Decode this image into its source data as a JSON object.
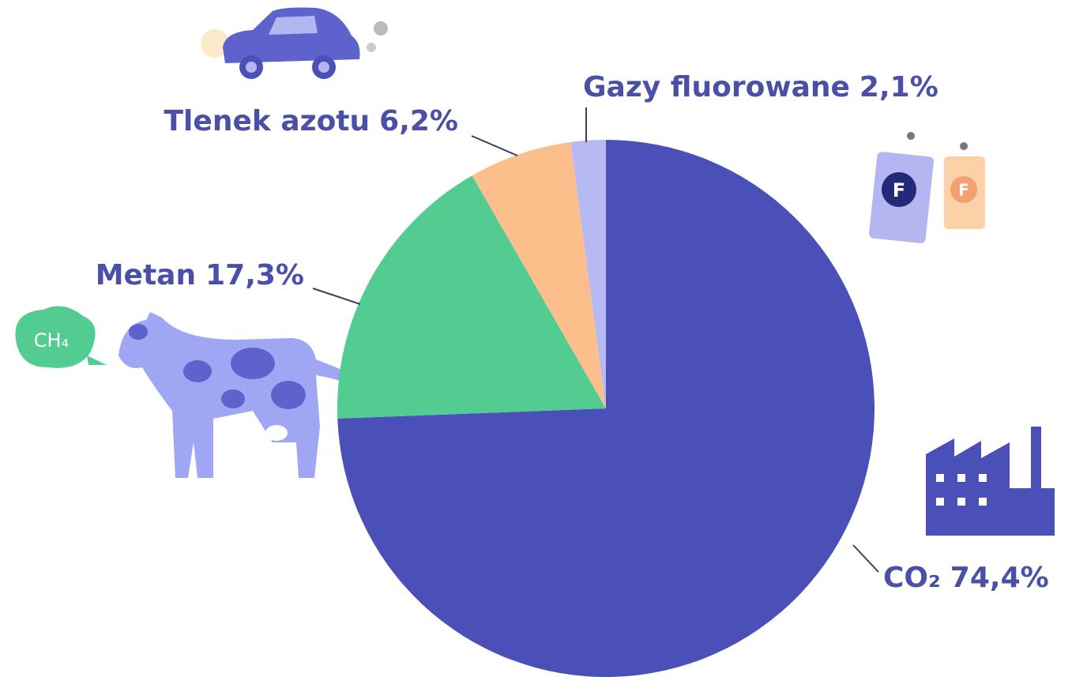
{
  "chart_data": {
    "type": "pie",
    "categories": [
      "CO₂",
      "Metan",
      "Tlenek azotu",
      "Gazy fluorowane"
    ],
    "values": [
      74.4,
      17.3,
      6.2,
      2.1
    ],
    "value_labels": [
      "74,4%",
      "17,3%",
      "6,2%",
      "2,1%"
    ],
    "colors": [
      "#4b50b9",
      "#52cc91",
      "#fcbf8c",
      "#b7b9f2"
    ],
    "annotations": [
      "CH₄",
      "F",
      "F"
    ]
  }
}
